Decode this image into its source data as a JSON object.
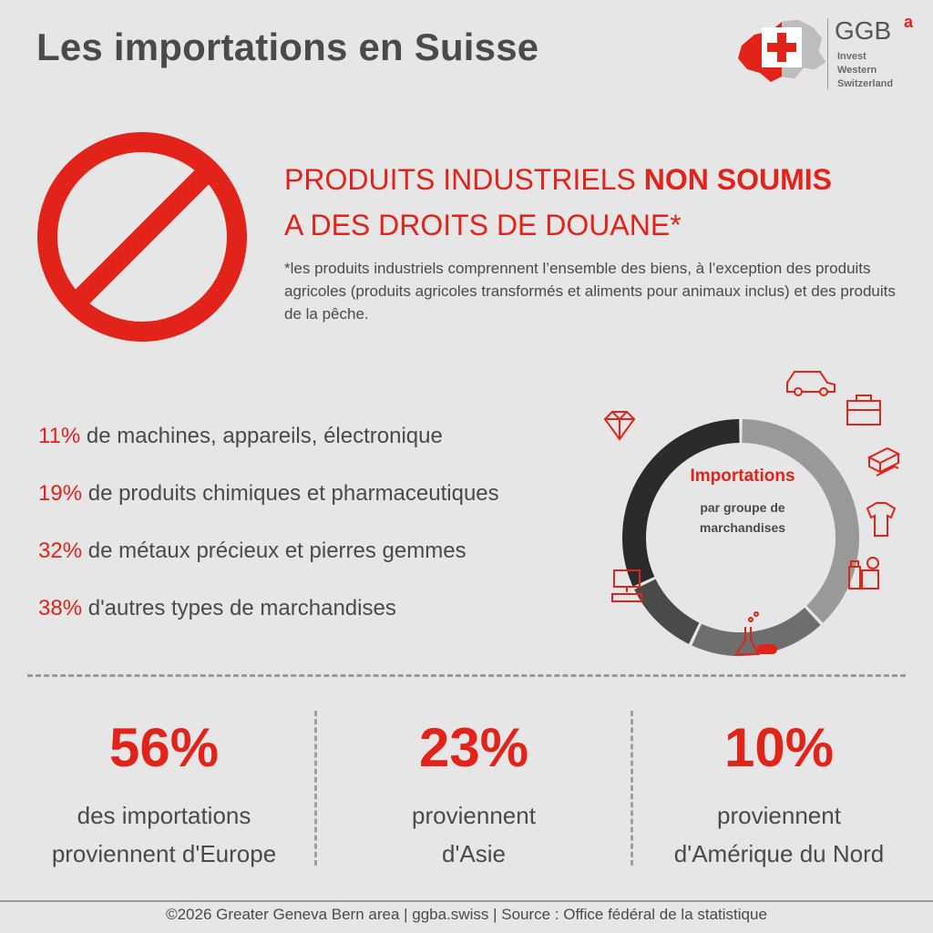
{
  "title": "Les importations en Suisse",
  "logo": {
    "brand": "GGB",
    "superscript": "a",
    "lines": [
      "Invest",
      "Western",
      "Switzerland"
    ]
  },
  "headline": {
    "part1": "PRODUITS INDUSTRIELS ",
    "bold": "NON SOUMIS",
    "part2": "A DES DROITS DE DOUANE*"
  },
  "footnote": "*les produits industriels comprennent l’ensemble des biens, à l’exception des produits agricoles (produits agricoles transformés et aliments pour animaux inclus) et des produits de la pêche.",
  "stats": [
    {
      "pct": "11%",
      "text": " de machines, appareils, électronique"
    },
    {
      "pct": "19%",
      "text": " de produits chimiques et pharmaceutiques"
    },
    {
      "pct": "32%",
      "text": " de métaux précieux et pierres gemmes"
    },
    {
      "pct": "38%",
      "text": " d'autres types de marchandises"
    }
  ],
  "donut": {
    "title": "Importations",
    "subtitle": "par groupe de marchandises"
  },
  "chart_data": {
    "type": "pie",
    "categories": [
      "autres types de marchandises",
      "produits chimiques et pharmaceutiques",
      "machines, appareils, électronique",
      "métaux précieux et pierres gemmes"
    ],
    "values": [
      38,
      19,
      11,
      32
    ],
    "colors": [
      "#999999",
      "#6e6e6e",
      "#4a4a4a",
      "#2b2b2b"
    ],
    "title": "Importations",
    "subtitle": "par groupe de marchandises",
    "donut": true
  },
  "icons": [
    "car-icon",
    "toolbox-icon",
    "metal-bars-icon",
    "clothing-icon",
    "food-icon",
    "chemistry-icon",
    "computer-icon",
    "diamond-icon"
  ],
  "regions": [
    {
      "pct": "56%",
      "line1": "des importations",
      "line2": "proviennent d'Europe"
    },
    {
      "pct": "23%",
      "line1": "proviennent",
      "line2": "d'Asie"
    },
    {
      "pct": "10%",
      "line1": "proviennent",
      "line2": "d'Amérique du Nord"
    }
  ],
  "footer": "©2026 Greater Geneva Bern area | ggba.swiss | Source : Office fédéral de la statistique",
  "colors": {
    "accent": "#e2231a",
    "text": "#4a4a4a",
    "background": "#e6e6e6"
  }
}
